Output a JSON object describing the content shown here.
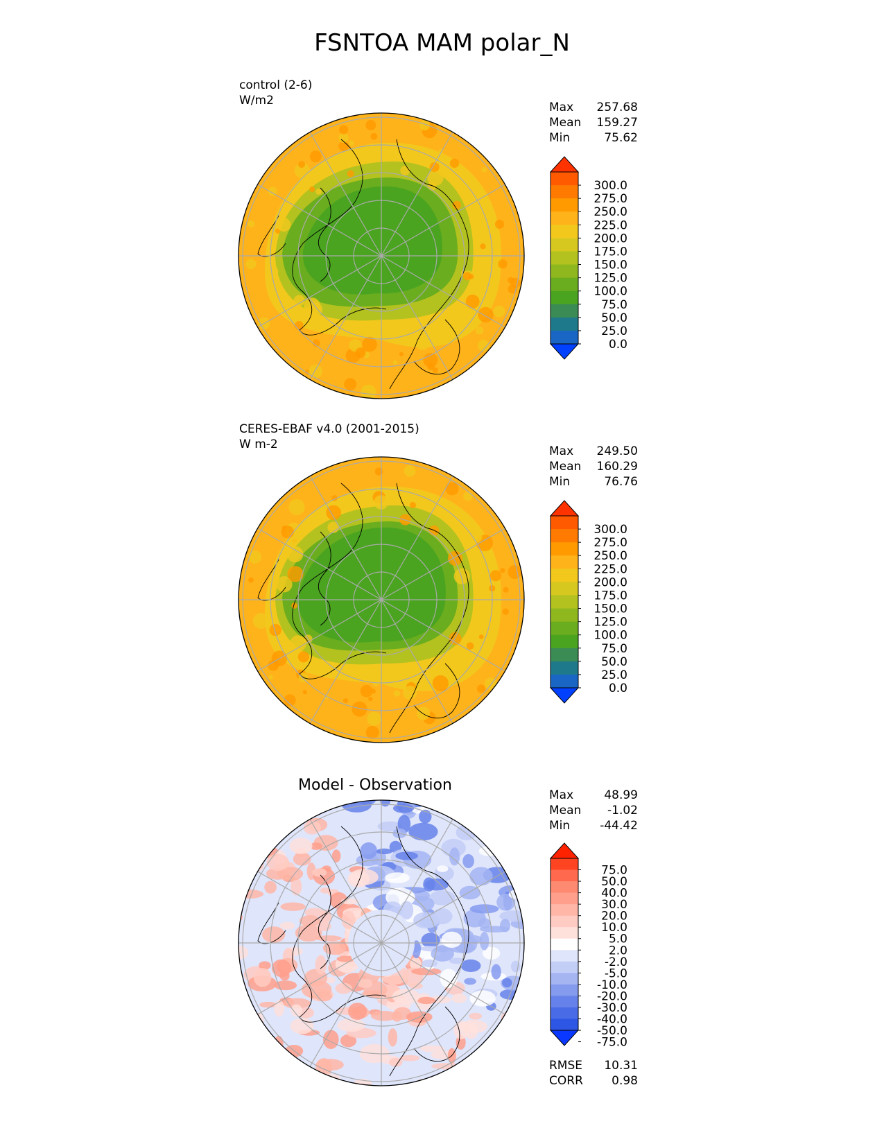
{
  "title": "FSNTOA MAM polar_N",
  "panels": [
    {
      "label_line1": "control (2-6)",
      "label_line2": "W/m2",
      "subtitle": "",
      "stats": [
        {
          "name": "Max",
          "value": "257.68"
        },
        {
          "name": "Mean",
          "value": "159.27"
        },
        {
          "name": "Min",
          "value": "75.62"
        }
      ]
    },
    {
      "label_line1": "CERES-EBAF v4.0 (2001-2015)",
      "label_line2": "W m-2",
      "subtitle": "",
      "stats": [
        {
          "name": "Max",
          "value": "249.50"
        },
        {
          "name": "Mean",
          "value": "160.29"
        },
        {
          "name": "Min",
          "value": "76.76"
        }
      ]
    },
    {
      "label_line1": "",
      "label_line2": "",
      "subtitle": "Model - Observation",
      "stats": [
        {
          "name": "Max",
          "value": "48.99"
        },
        {
          "name": "Mean",
          "value": "-1.02"
        },
        {
          "name": "Min",
          "value": "-44.42"
        }
      ],
      "metrics": [
        {
          "name": "RMSE",
          "value": "10.31"
        },
        {
          "name": "CORR",
          "value": "0.98"
        }
      ]
    }
  ],
  "colorbars": {
    "field": {
      "ticks": [
        "300.0",
        "275.0",
        "250.0",
        "225.0",
        "200.0",
        "175.0",
        "150.0",
        "125.0",
        "100.0",
        "75.0",
        "50.0",
        "25.0",
        "0.0"
      ],
      "colors": [
        "#ff3300",
        "#ff5a00",
        "#ff7a00",
        "#ff9a00",
        "#ffb31a",
        "#f2c81d",
        "#d6c81f",
        "#b3c21f",
        "#8fb81f",
        "#6aad1f",
        "#4aa420",
        "#3b8b55",
        "#1e7a8a",
        "#1a66c4",
        "#0040ff"
      ]
    },
    "diff": {
      "ticks": [
        "75.0",
        "50.0",
        "40.0",
        "30.0",
        "20.0",
        "10.0",
        "5.0",
        "2.0",
        "-2.0",
        "-5.0",
        "-10.0",
        "-20.0",
        "-30.0",
        "-40.0",
        "-50.0",
        "-75.0"
      ],
      "colors": [
        "#ff2200",
        "#ff4422",
        "#ff6a4f",
        "#ff8a72",
        "#ff9f8c",
        "#ffb6a6",
        "#ffcbc2",
        "#ffe1dc",
        "#ffffff",
        "#dfe5fb",
        "#c3cef7",
        "#a4b5f2",
        "#859bee",
        "#6682ea",
        "#4a6be6",
        "#2e56e5",
        "#0a38ff"
      ]
    }
  },
  "chart_data": [
    {
      "type": "heatmap",
      "projection": "north-polar-stereographic",
      "title": "control (2-6)",
      "units": "W/m2",
      "stats": {
        "max": 257.68,
        "mean": 159.27,
        "min": 75.62
      },
      "levels": [
        0,
        25,
        50,
        75,
        100,
        125,
        150,
        175,
        200,
        225,
        250,
        275,
        300
      ],
      "extend": "both",
      "grid": true,
      "field_summary": {
        "pole_region": 90,
        "arctic_ocean": 115,
        "subarctic": 150,
        "mid_latitude": 210,
        "edge": 225
      }
    },
    {
      "type": "heatmap",
      "projection": "north-polar-stereographic",
      "title": "CERES-EBAF v4.0 (2001-2015)",
      "units": "W m-2",
      "stats": {
        "max": 249.5,
        "mean": 160.29,
        "min": 76.76
      },
      "levels": [
        0,
        25,
        50,
        75,
        100,
        125,
        150,
        175,
        200,
        225,
        250,
        275,
        300
      ],
      "extend": "both",
      "grid": true,
      "field_summary": {
        "pole_region": 90,
        "arctic_ocean": 110,
        "subarctic": 150,
        "mid_latitude": 200,
        "edge": 225
      }
    },
    {
      "type": "heatmap",
      "projection": "north-polar-stereographic",
      "title": "Model - Observation",
      "stats": {
        "max": 48.99,
        "mean": -1.02,
        "min": -44.42,
        "rmse": 10.31,
        "corr": 0.98
      },
      "levels": [
        -75,
        -50,
        -40,
        -30,
        -20,
        -10,
        -5,
        -2,
        2,
        5,
        10,
        20,
        30,
        40,
        50,
        75
      ],
      "extend": "both",
      "grid": true
    }
  ]
}
